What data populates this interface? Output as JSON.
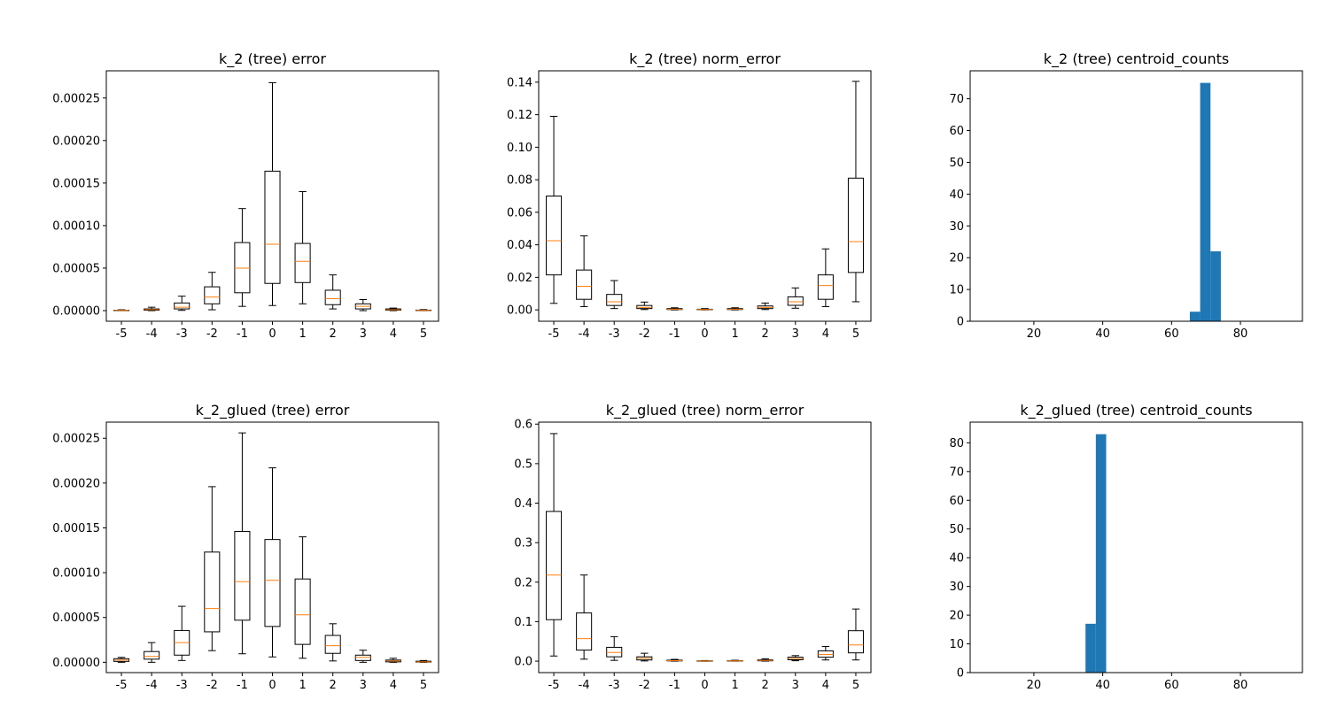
{
  "figure": {
    "background": "#ffffff",
    "box_color": "#000000",
    "median_color": "#ff7f0e",
    "bar_color": "#1f77b4"
  },
  "chart_data": [
    {
      "id": "k2-error",
      "type": "boxplot",
      "title": "k_2 (tree) error",
      "categories": [
        "-5",
        "-4",
        "-3",
        "-2",
        "-1",
        "0",
        "1",
        "2",
        "3",
        "4",
        "5"
      ],
      "ylim": [
        -1.25e-05,
        0.000282
      ],
      "yticks": [
        0,
        5e-05,
        0.0001,
        0.00015,
        0.0002,
        0.00025
      ],
      "ytick_labels": [
        "0.00000",
        "0.00005",
        "0.00010",
        "0.00015",
        "0.00020",
        "0.00025"
      ],
      "boxes": [
        {
          "whislo": 0.0,
          "q1": 1e-07,
          "med": 2e-07,
          "q3": 5e-07,
          "whishi": 1e-06
        },
        {
          "whislo": 0.0,
          "q1": 5e-07,
          "med": 1.2e-06,
          "q3": 2e-06,
          "whishi": 4e-06
        },
        {
          "whislo": 3e-07,
          "q1": 2e-06,
          "med": 4e-06,
          "q3": 9e-06,
          "whishi": 1.7e-05
        },
        {
          "whislo": 1e-06,
          "q1": 8e-06,
          "med": 1.6e-05,
          "q3": 2.8e-05,
          "whishi": 4.5e-05
        },
        {
          "whislo": 5e-06,
          "q1": 2.1e-05,
          "med": 5e-05,
          "q3": 8e-05,
          "whishi": 0.00012
        },
        {
          "whislo": 6e-06,
          "q1": 3.2e-05,
          "med": 7.8e-05,
          "q3": 0.000164,
          "whishi": 0.000268
        },
        {
          "whislo": 8e-06,
          "q1": 3.3e-05,
          "med": 5.8e-05,
          "q3": 7.9e-05,
          "whishi": 0.00014
        },
        {
          "whislo": 2e-06,
          "q1": 7e-06,
          "med": 1.4e-05,
          "q3": 2.4e-05,
          "whishi": 4.2e-05
        },
        {
          "whislo": 0.0,
          "q1": 2e-06,
          "med": 5e-06,
          "q3": 8e-06,
          "whishi": 1.3e-05
        },
        {
          "whislo": 0.0,
          "q1": 5e-07,
          "med": 1e-06,
          "q3": 2e-06,
          "whishi": 3e-06
        },
        {
          "whislo": 0.0,
          "q1": 1e-07,
          "med": 3e-07,
          "q3": 6e-07,
          "whishi": 1.2e-06
        }
      ]
    },
    {
      "id": "k2-norm-error",
      "type": "boxplot",
      "title": "k_2 (tree) norm_error",
      "categories": [
        "-5",
        "-4",
        "-3",
        "-2",
        "-1",
        "0",
        "1",
        "2",
        "3",
        "4",
        "5"
      ],
      "ylim": [
        -0.007,
        0.147
      ],
      "yticks": [
        0,
        0.02,
        0.04,
        0.06,
        0.08,
        0.1,
        0.12,
        0.14
      ],
      "ytick_labels": [
        "0.00",
        "0.02",
        "0.04",
        "0.06",
        "0.08",
        "0.10",
        "0.12",
        "0.14"
      ],
      "boxes": [
        {
          "whislo": 0.004,
          "q1": 0.0215,
          "med": 0.0425,
          "q3": 0.07,
          "whishi": 0.119
        },
        {
          "whislo": 0.002,
          "q1": 0.0065,
          "med": 0.0145,
          "q3": 0.0245,
          "whishi": 0.0455
        },
        {
          "whislo": 0.0008,
          "q1": 0.0027,
          "med": 0.005,
          "q3": 0.0095,
          "whishi": 0.018
        },
        {
          "whislo": 0.0002,
          "q1": 0.0008,
          "med": 0.0015,
          "q3": 0.0027,
          "whishi": 0.0048
        },
        {
          "whislo": 0.0,
          "q1": 0.0002,
          "med": 0.0004,
          "q3": 0.0008,
          "whishi": 0.0013
        },
        {
          "whislo": 0.0,
          "q1": 0.0001,
          "med": 0.0002,
          "q3": 0.0004,
          "whishi": 0.0008
        },
        {
          "whislo": 0.0,
          "q1": 0.0002,
          "med": 0.0004,
          "q3": 0.0008,
          "whishi": 0.0013
        },
        {
          "whislo": 0.0002,
          "q1": 0.0008,
          "med": 0.0015,
          "q3": 0.0024,
          "whishi": 0.0042
        },
        {
          "whislo": 0.001,
          "q1": 0.0028,
          "med": 0.005,
          "q3": 0.008,
          "whishi": 0.0135
        },
        {
          "whislo": 0.002,
          "q1": 0.0065,
          "med": 0.015,
          "q3": 0.0215,
          "whishi": 0.0375
        },
        {
          "whislo": 0.005,
          "q1": 0.023,
          "med": 0.042,
          "q3": 0.081,
          "whishi": 0.1405
        }
      ]
    },
    {
      "id": "k2-centroid-counts",
      "type": "histogram",
      "title": "k_2 (tree) centroid_counts",
      "xlim": [
        1.5,
        98
      ],
      "ylim": [
        0,
        78.8
      ],
      "xticks": [
        20,
        40,
        60,
        80
      ],
      "xtick_labels": [
        "20",
        "40",
        "60",
        "80"
      ],
      "yticks": [
        0,
        10,
        20,
        30,
        40,
        50,
        60,
        70
      ],
      "ytick_labels": [
        "0",
        "10",
        "20",
        "30",
        "40",
        "50",
        "60",
        "70"
      ],
      "bins": [
        {
          "x0": 65.3,
          "x1": 68.3,
          "count": 3
        },
        {
          "x0": 68.3,
          "x1": 71.3,
          "count": 75
        },
        {
          "x0": 71.3,
          "x1": 74.3,
          "count": 22
        }
      ]
    },
    {
      "id": "k2-glued-error",
      "type": "boxplot",
      "title": "k_2_glued (tree) error",
      "categories": [
        "-5",
        "-4",
        "-3",
        "-2",
        "-1",
        "0",
        "1",
        "2",
        "3",
        "4",
        "5"
      ],
      "ylim": [
        -1.15e-05,
        0.000268
      ],
      "yticks": [
        0,
        5e-05,
        0.0001,
        0.00015,
        0.0002,
        0.00025
      ],
      "ytick_labels": [
        "0.00000",
        "0.00005",
        "0.00010",
        "0.00015",
        "0.00020",
        "0.00025"
      ],
      "boxes": [
        {
          "whislo": 0.0,
          "q1": 1e-06,
          "med": 2.5e-06,
          "q3": 4e-06,
          "whishi": 5.5e-06
        },
        {
          "whislo": 0.0,
          "q1": 3.5e-06,
          "med": 6.5e-06,
          "q3": 1.2e-05,
          "whishi": 2.2e-05
        },
        {
          "whislo": 2e-06,
          "q1": 8e-06,
          "med": 2.2e-05,
          "q3": 3.55e-05,
          "whishi": 6.25e-05
        },
        {
          "whislo": 1.3e-05,
          "q1": 3.4e-05,
          "med": 6e-05,
          "q3": 0.000123,
          "whishi": 0.000196
        },
        {
          "whislo": 9.5e-06,
          "q1": 4.7e-05,
          "med": 9e-05,
          "q3": 0.000146,
          "whishi": 0.000256
        },
        {
          "whislo": 6e-06,
          "q1": 4e-05,
          "med": 9.15e-05,
          "q3": 0.000137,
          "whishi": 0.000217
        },
        {
          "whislo": 4.5e-06,
          "q1": 2e-05,
          "med": 5.3e-05,
          "q3": 9.3e-05,
          "whishi": 0.00014
        },
        {
          "whislo": 1.5e-06,
          "q1": 1e-05,
          "med": 1.85e-05,
          "q3": 3e-05,
          "whishi": 4.3e-05
        },
        {
          "whislo": 0.0,
          "q1": 2e-06,
          "med": 5.5e-06,
          "q3": 8e-06,
          "whishi": 1.35e-05
        },
        {
          "whislo": 0.0,
          "q1": 5e-07,
          "med": 1.5e-06,
          "q3": 2.5e-06,
          "whishi": 4.5e-06
        },
        {
          "whislo": 0.0,
          "q1": 2e-07,
          "med": 5e-07,
          "q3": 1.2e-06,
          "whishi": 2e-06
        }
      ]
    },
    {
      "id": "k2-glued-norm-error",
      "type": "boxplot",
      "title": "k_2_glued (tree) norm_error",
      "categories": [
        "-5",
        "-4",
        "-3",
        "-2",
        "-1",
        "0",
        "1",
        "2",
        "3",
        "4",
        "5"
      ],
      "ylim": [
        -0.029,
        0.605
      ],
      "yticks": [
        0,
        0.1,
        0.2,
        0.3,
        0.4,
        0.5,
        0.6
      ],
      "ytick_labels": [
        "0.0",
        "0.1",
        "0.2",
        "0.3",
        "0.4",
        "0.5",
        "0.6"
      ],
      "boxes": [
        {
          "whislo": 0.013,
          "q1": 0.105,
          "med": 0.218,
          "q3": 0.379,
          "whishi": 0.576
        },
        {
          "whislo": 0.005,
          "q1": 0.028,
          "med": 0.057,
          "q3": 0.122,
          "whishi": 0.218
        },
        {
          "whislo": 0.002,
          "q1": 0.011,
          "med": 0.022,
          "q3": 0.035,
          "whishi": 0.062
        },
        {
          "whislo": 0.0005,
          "q1": 0.003,
          "med": 0.007,
          "q3": 0.011,
          "whishi": 0.02
        },
        {
          "whislo": 0.0,
          "q1": 0.0006,
          "med": 0.0013,
          "q3": 0.0025,
          "whishi": 0.0045
        },
        {
          "whislo": 0.0,
          "q1": 0.0002,
          "med": 0.0005,
          "q3": 0.0009,
          "whishi": 0.0015
        },
        {
          "whislo": 0.0,
          "q1": 0.0003,
          "med": 0.0007,
          "q3": 0.0013,
          "whishi": 0.0023
        },
        {
          "whislo": 0.0,
          "q1": 0.0008,
          "med": 0.0018,
          "q3": 0.0032,
          "whishi": 0.0058
        },
        {
          "whislo": 0.001,
          "q1": 0.0035,
          "med": 0.0065,
          "q3": 0.01,
          "whishi": 0.014
        },
        {
          "whislo": 0.003,
          "q1": 0.01,
          "med": 0.017,
          "q3": 0.026,
          "whishi": 0.037
        },
        {
          "whislo": 0.003,
          "q1": 0.021,
          "med": 0.041,
          "q3": 0.077,
          "whishi": 0.132
        }
      ]
    },
    {
      "id": "k2-glued-centroid-counts",
      "type": "histogram",
      "title": "k_2_glued (tree) centroid_counts",
      "xlim": [
        1.5,
        98
      ],
      "ylim": [
        0,
        87.2
      ],
      "xticks": [
        20,
        40,
        60,
        80
      ],
      "xtick_labels": [
        "20",
        "40",
        "60",
        "80"
      ],
      "yticks": [
        0,
        10,
        20,
        30,
        40,
        50,
        60,
        70,
        80
      ],
      "ytick_labels": [
        "0",
        "10",
        "20",
        "30",
        "40",
        "50",
        "60",
        "70",
        "80"
      ],
      "bins": [
        {
          "x0": 35.0,
          "x1": 38.0,
          "count": 17
        },
        {
          "x0": 38.0,
          "x1": 41.0,
          "count": 83
        }
      ]
    }
  ]
}
